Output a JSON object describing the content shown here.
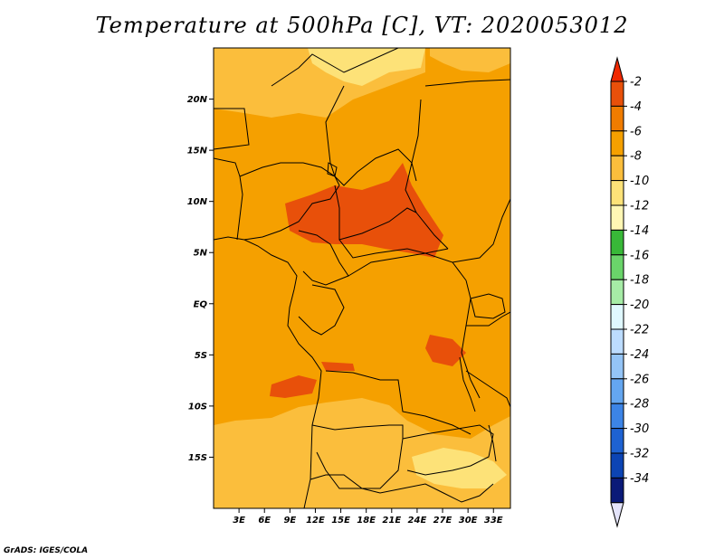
{
  "title": "Temperature at 500hPa [C], VT: 2020053012",
  "credit": "GrADS: IGES/COLA",
  "map": {
    "lat_range": [
      -20,
      25
    ],
    "lon_range": [
      0,
      35
    ],
    "lat_ticks": [
      {
        "v": 20,
        "label": "20N"
      },
      {
        "v": 15,
        "label": "15N"
      },
      {
        "v": 10,
        "label": "10N"
      },
      {
        "v": 5,
        "label": "5N"
      },
      {
        "v": 0,
        "label": "EQ"
      },
      {
        "v": -5,
        "label": "5S"
      },
      {
        "v": -10,
        "label": "10S"
      },
      {
        "v": -15,
        "label": "15S"
      }
    ],
    "lon_ticks": [
      {
        "v": 3,
        "label": "3E"
      },
      {
        "v": 6,
        "label": "6E"
      },
      {
        "v": 9,
        "label": "9E"
      },
      {
        "v": 12,
        "label": "12E"
      },
      {
        "v": 15,
        "label": "15E"
      },
      {
        "v": 18,
        "label": "18E"
      },
      {
        "v": 21,
        "label": "21E"
      },
      {
        "v": 24,
        "label": "24E"
      },
      {
        "v": 27,
        "label": "27E"
      },
      {
        "v": 30,
        "label": "30E"
      },
      {
        "v": 33,
        "label": "33E"
      }
    ]
  },
  "colorbar": {
    "labels": [
      "-2",
      "-4",
      "-6",
      "-8",
      "-10",
      "-12",
      "-14",
      "-16",
      "-18",
      "-20",
      "-22",
      "-24",
      "-26",
      "-28",
      "-30",
      "-32",
      "-34"
    ],
    "colors": [
      "#e8500a",
      "#f07c00",
      "#f5a000",
      "#fbbe3c",
      "#fde278",
      "#fff7b4",
      "#38b838",
      "#6ad46a",
      "#a6eca6",
      "#e0f8ff",
      "#bcdcff",
      "#94c4f6",
      "#64a6f0",
      "#3c84e6",
      "#1e62d2",
      "#0c44b4",
      "#0a1a78"
    ],
    "top_arrow_color": "#f02800",
    "bottom_arrow_color": "#e4e4fa"
  }
}
